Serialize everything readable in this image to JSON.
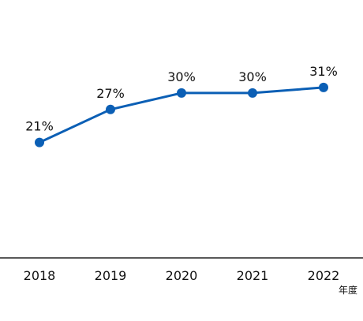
{
  "chart_data": {
    "type": "line",
    "categories": [
      "2018",
      "2019",
      "2020",
      "2021",
      "2022"
    ],
    "series": [
      {
        "values": [
          21,
          27,
          30,
          30,
          31
        ],
        "labels": [
          "21%",
          "27%",
          "30%",
          "30%",
          "31%"
        ],
        "color": "#0b5fb5"
      }
    ],
    "x_unit_label": "年度",
    "title": "",
    "xlabel": "",
    "ylabel": "",
    "ylim": [
      0,
      34
    ],
    "grid": false,
    "legend": "none",
    "axis_color": "#222222"
  }
}
